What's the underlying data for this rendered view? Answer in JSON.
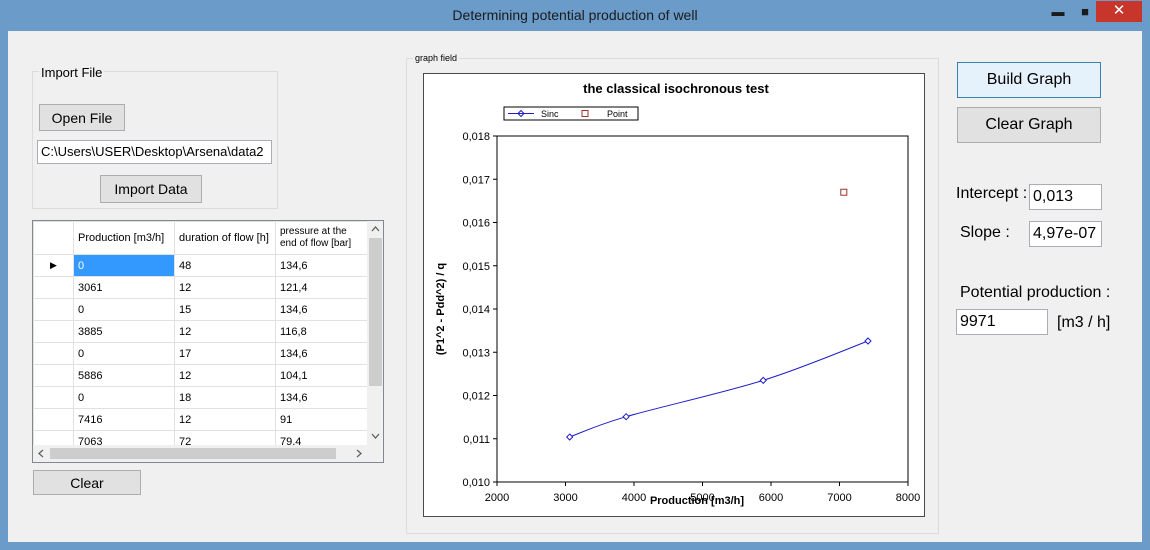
{
  "window": {
    "title": "Determining potential production of well",
    "minimize_glyph": "▬",
    "maximize_glyph": "■",
    "close_glyph": "✕"
  },
  "import_group": {
    "legend": "Import File",
    "open_file_label": "Open File",
    "file_path": "C:\\Users\\USER\\Desktop\\Arsena\\data2",
    "import_data_label": "Import Data"
  },
  "table": {
    "columns": [
      "Production [m3/h]",
      "duration of flow [h]",
      "pressure at the end of  flow [bar]"
    ],
    "rows": [
      [
        "0",
        "48",
        "134,6"
      ],
      [
        "3061",
        "12",
        "121,4"
      ],
      [
        "0",
        "15",
        "134,6"
      ],
      [
        "3885",
        "12",
        "116,8"
      ],
      [
        "0",
        "17",
        "134,6"
      ],
      [
        "5886",
        "12",
        "104,1"
      ],
      [
        "0",
        "18",
        "134,6"
      ],
      [
        "7416",
        "12",
        "91"
      ],
      [
        "7063",
        "72",
        "79,4"
      ]
    ]
  },
  "clear_label": "Clear",
  "graph_group": {
    "legend": "graph field"
  },
  "buttons": {
    "build_graph": "Build Graph",
    "clear_graph": "Clear Graph"
  },
  "results": {
    "intercept_label": "Intercept :",
    "intercept_value": "0,013",
    "slope_label": "Slope :",
    "slope_value": "4,97e-07",
    "potential_label": "Potential production :",
    "potential_value": "9971",
    "potential_unit": "[m3 / h]"
  },
  "chart_data": {
    "type": "line",
    "title": "the classical isochronous test",
    "xlabel": "Production [m3/h]",
    "ylabel": "(P1^2 - Pdd^2) / q",
    "xlim": [
      2000,
      8000
    ],
    "ylim": [
      0.01,
      0.018
    ],
    "x_ticks": [
      "2000",
      "3000",
      "4000",
      "5000",
      "6000",
      "7000",
      "8000"
    ],
    "y_ticks": [
      "0,010",
      "0,011",
      "0,012",
      "0,013",
      "0,014",
      "0,015",
      "0,016",
      "0,017",
      "0,018"
    ],
    "legend_position": "top-left",
    "series": [
      {
        "name": "Sinc",
        "color": "#1c1cc8",
        "marker": "diamond",
        "points": [
          [
            3061,
            0.01104
          ],
          [
            3885,
            0.01151
          ],
          [
            5886,
            0.01235
          ],
          [
            7416,
            0.01326
          ]
        ]
      },
      {
        "name": "Point",
        "color": "#a0302a",
        "marker": "square",
        "points": [
          [
            7063,
            0.0167
          ]
        ]
      }
    ]
  }
}
